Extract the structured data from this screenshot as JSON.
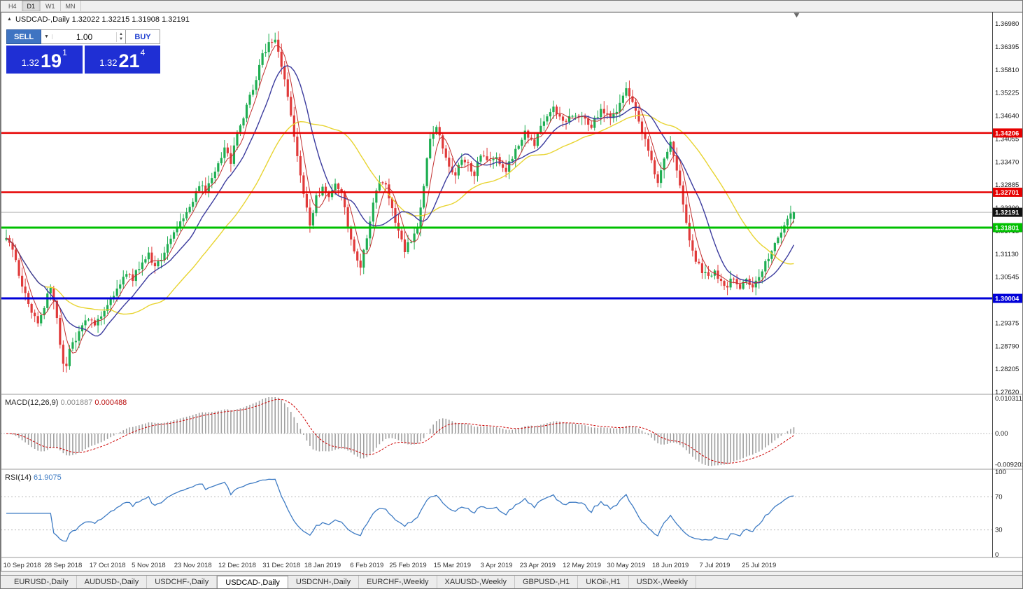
{
  "toolbar": {
    "buttons": [
      "H4",
      "D1",
      "W1",
      "MN"
    ],
    "active": "D1"
  },
  "chart_header": {
    "collapse_icon": "▲",
    "title_full": "USDCAD-,Daily  1.32022 1.32215 1.31908 1.32191"
  },
  "trade_panel": {
    "sell_label": "SELL",
    "buy_label": "BUY",
    "volume": "1.00",
    "dropdown_icon": "▼",
    "spin_up_icon": "▲",
    "spin_down_icon": "▼",
    "sell_price": {
      "prefix": "1.32",
      "big": "19",
      "sup": "1"
    },
    "buy_price": {
      "prefix": "1.32",
      "big": "21",
      "sup": "4"
    }
  },
  "tabs": {
    "items": [
      "EURUSD-,Daily",
      "AUDUSD-,Daily",
      "USDCHF-,Daily",
      "USDCAD-,Daily",
      "USDCNH-,Daily",
      "EURCHF-,Weekly",
      "XAUUSD-,Weekly",
      "GBPUSD-,H1",
      "UKOil-,H1",
      "USDX-,Weekly"
    ],
    "active_index": 3
  },
  "chart_data": {
    "type": "candlestick",
    "symbol": "USDCAD-",
    "timeframe": "Daily",
    "candle_count": 250,
    "ohlc_current": {
      "open": 1.32022,
      "high": 1.32215,
      "low": 1.31908,
      "close": 1.32191
    },
    "colors": {
      "bull": "#1fae52",
      "bear": "#e03a3a",
      "macd_hist": "#a0a0a0",
      "macd_signal": "#cc0000",
      "rsi_line": "#3f7cc4"
    },
    "y_axis_ticks": [
      "1.36980",
      "1.36395",
      "1.35810",
      "1.35225",
      "1.34640",
      "1.34055",
      "1.33470",
      "1.32885",
      "1.32300",
      "1.31715",
      "1.31130",
      "1.30545",
      "1.29960",
      "1.29375",
      "1.28790",
      "1.28205",
      "1.27620"
    ],
    "x_axis_labels": [
      {
        "label": "10 Sep 2018",
        "index": 5
      },
      {
        "label": "28 Sep 2018",
        "index": 18
      },
      {
        "label": "17 Oct 2018",
        "index": 32
      },
      {
        "label": "5 Nov 2018",
        "index": 45
      },
      {
        "label": "23 Nov 2018",
        "index": 59
      },
      {
        "label": "12 Dec 2018",
        "index": 73
      },
      {
        "label": "31 Dec 2018",
        "index": 87
      },
      {
        "label": "18 Jan 2019",
        "index": 100
      },
      {
        "label": "6 Feb 2019",
        "index": 114
      },
      {
        "label": "25 Feb 2019",
        "index": 127
      },
      {
        "label": "15 Mar 2019",
        "index": 141
      },
      {
        "label": "3 Apr 2019",
        "index": 155
      },
      {
        "label": "23 Apr 2019",
        "index": 168
      },
      {
        "label": "12 May 2019",
        "index": 182
      },
      {
        "label": "30 May 2019",
        "index": 196
      },
      {
        "label": "18 Jun 2019",
        "index": 210
      },
      {
        "label": "7 Jul 2019",
        "index": 224
      },
      {
        "label": "25 Jul 2019",
        "index": 238
      }
    ],
    "levels": [
      {
        "label": "1.34206",
        "price": 1.34206,
        "color": "#e60000",
        "line_width": 2.5
      },
      {
        "label": "1.32701",
        "price": 1.32701,
        "color": "#e60000",
        "line_width": 2.5
      },
      {
        "label": "1.32191",
        "price": 1.32191,
        "color": "#111111",
        "line_width": 1,
        "current": true
      },
      {
        "label": "1.31801",
        "price": 1.31801,
        "color": "#00c000",
        "line_width": 3
      },
      {
        "label": "1.30004",
        "price": 1.30004,
        "color": "#0000d8",
        "line_width": 3
      }
    ],
    "moving_averages": [
      {
        "period": 34,
        "color": "#e8d431",
        "width": 1.4
      },
      {
        "period": 13,
        "color": "#3c3c9e",
        "width": 1.4
      },
      {
        "period": 5,
        "color": "#c22f2f",
        "width": 1
      }
    ],
    "price_anchors": [
      [
        0,
        1.316
      ],
      [
        2,
        1.312
      ],
      [
        4,
        1.306
      ],
      [
        6,
        1.301
      ],
      [
        8,
        1.2965
      ],
      [
        10,
        1.294
      ],
      [
        12,
        1.298
      ],
      [
        14,
        1.303
      ],
      [
        16,
        1.295
      ],
      [
        17,
        1.289
      ],
      [
        18,
        1.284
      ],
      [
        19,
        1.283
      ],
      [
        20,
        1.287
      ],
      [
        22,
        1.29
      ],
      [
        24,
        1.293
      ],
      [
        26,
        1.295
      ],
      [
        28,
        1.293
      ],
      [
        30,
        1.2955
      ],
      [
        32,
        1.299
      ],
      [
        34,
        1.301
      ],
      [
        36,
        1.304
      ],
      [
        38,
        1.3065
      ],
      [
        40,
        1.305
      ],
      [
        42,
        1.308
      ],
      [
        45,
        1.311
      ],
      [
        47,
        1.3085
      ],
      [
        49,
        1.3105
      ],
      [
        51,
        1.314
      ],
      [
        53,
        1.317
      ],
      [
        55,
        1.32
      ],
      [
        57,
        1.322
      ],
      [
        59,
        1.3245
      ],
      [
        61,
        1.329
      ],
      [
        63,
        1.327
      ],
      [
        65,
        1.331
      ],
      [
        67,
        1.334
      ],
      [
        69,
        1.338
      ],
      [
        71,
        1.335
      ],
      [
        73,
        1.342
      ],
      [
        75,
        1.346
      ],
      [
        77,
        1.351
      ],
      [
        79,
        1.356
      ],
      [
        81,
        1.362
      ],
      [
        83,
        1.3645
      ],
      [
        85,
        1.365
      ],
      [
        86,
        1.363
      ],
      [
        88,
        1.356
      ],
      [
        90,
        1.346
      ],
      [
        92,
        1.336
      ],
      [
        94,
        1.326
      ],
      [
        96,
        1.319
      ],
      [
        98,
        1.3255
      ],
      [
        100,
        1.328
      ],
      [
        102,
        1.326
      ],
      [
        104,
        1.3295
      ],
      [
        106,
        1.327
      ],
      [
        108,
        1.318
      ],
      [
        110,
        1.312
      ],
      [
        112,
        1.3085
      ],
      [
        114,
        1.315
      ],
      [
        116,
        1.325
      ],
      [
        118,
        1.33
      ],
      [
        120,
        1.3285
      ],
      [
        122,
        1.323
      ],
      [
        124,
        1.317
      ],
      [
        126,
        1.312
      ],
      [
        128,
        1.315
      ],
      [
        130,
        1.3185
      ],
      [
        132,
        1.329
      ],
      [
        134,
        1.341
      ],
      [
        136,
        1.344
      ],
      [
        138,
        1.3385
      ],
      [
        140,
        1.3335
      ],
      [
        142,
        1.332
      ],
      [
        144,
        1.336
      ],
      [
        146,
        1.334
      ],
      [
        148,
        1.331
      ],
      [
        150,
        1.337
      ],
      [
        152,
        1.3345
      ],
      [
        155,
        1.3355
      ],
      [
        158,
        1.3325
      ],
      [
        161,
        1.338
      ],
      [
        164,
        1.342
      ],
      [
        167,
        1.3395
      ],
      [
        170,
        1.345
      ],
      [
        173,
        1.348
      ],
      [
        176,
        1.3445
      ],
      [
        179,
        1.347
      ],
      [
        182,
        1.346
      ],
      [
        185,
        1.344
      ],
      [
        188,
        1.348
      ],
      [
        191,
        1.3455
      ],
      [
        194,
        1.3495
      ],
      [
        196,
        1.353
      ],
      [
        198,
        1.3505
      ],
      [
        200,
        1.345
      ],
      [
        202,
        1.34
      ],
      [
        204,
        1.3345
      ],
      [
        206,
        1.33
      ],
      [
        208,
        1.3355
      ],
      [
        210,
        1.34
      ],
      [
        212,
        1.333
      ],
      [
        214,
        1.324
      ],
      [
        216,
        1.315
      ],
      [
        218,
        1.31
      ],
      [
        220,
        1.307
      ],
      [
        222,
        1.3055
      ],
      [
        224,
        1.307
      ],
      [
        226,
        1.3045
      ],
      [
        228,
        1.3035
      ],
      [
        230,
        1.3055
      ],
      [
        232,
        1.303
      ],
      [
        234,
        1.3045
      ],
      [
        236,
        1.3035
      ],
      [
        238,
        1.306
      ],
      [
        240,
        1.309
      ],
      [
        242,
        1.312
      ],
      [
        244,
        1.3155
      ],
      [
        246,
        1.3185
      ],
      [
        248,
        1.3215
      ],
      [
        249,
        1.3219
      ]
    ],
    "indicators": {
      "macd": {
        "name": "MACD(12,26,9)",
        "value_main": "0.001887",
        "value_signal": "0.000488",
        "scale_ticks": [
          "0.010311",
          "0.00",
          "-0.009203"
        ],
        "params": [
          12,
          26,
          9
        ]
      },
      "rsi": {
        "name": "RSI(14)",
        "value": "61.9075",
        "scale_ticks": [
          "100",
          "70",
          "30",
          "0"
        ],
        "levels": [
          70,
          30
        ],
        "period": 14
      }
    }
  }
}
